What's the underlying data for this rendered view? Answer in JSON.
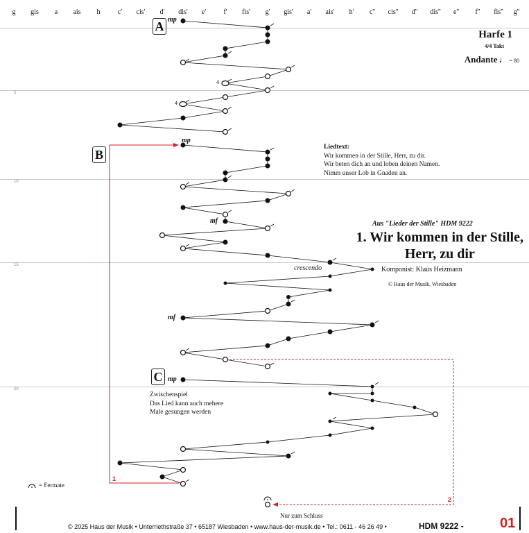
{
  "note_names": [
    "g",
    "gis",
    "a",
    "ais",
    "h",
    "c'",
    "cis'",
    "d'",
    "dis'",
    "e'",
    "f'",
    "fis'",
    "g'",
    "gis'",
    "a'",
    "ais'",
    "h'",
    "c''",
    "cis''",
    "d''",
    "dis''",
    "e''",
    "f''",
    "fis''",
    "g''"
  ],
  "measure_numbers": [
    "5",
    "10",
    "15",
    "20"
  ],
  "sections": {
    "a": "A",
    "b": "B",
    "c": "C"
  },
  "dynamics": {
    "a_mp": "mp",
    "b_mp": "mp",
    "mf1": "mf",
    "mf2": "mf",
    "c_mp": "mp"
  },
  "fingering": {
    "f1": "4",
    "f2": "4"
  },
  "header": {
    "instrument": "Harfe 1",
    "time_signature": "4/4 Takt",
    "tempo_word": "Andante",
    "tempo_value": "= 80"
  },
  "lyrics": {
    "heading": "Liedtext:",
    "lines": [
      "Wir kommen in der Stille, Herr, zu dir.",
      "Wir beten dich an und loben deinen Namen.",
      "Nimm unser Lob in Gnaden an."
    ]
  },
  "song": {
    "source": "Aus \"Lieder der Stille\" HDM 9222",
    "title_line1": "1. Wir kommen in der Stille,",
    "title_line2": "Herr, zu dir",
    "composer": "Komponist: Klaus Heizmann",
    "copyright": "© Haus der Musik, Wiesbaden"
  },
  "crescendo": "crescendo",
  "interlude": {
    "lines": [
      "Zwischenspiel",
      "Das Lied kann auch mehere",
      "Male gesungen werden"
    ]
  },
  "legend": {
    "fermata": "= Fermate"
  },
  "repeat_labels": {
    "one": "1",
    "two": "2"
  },
  "ending_note": "Nur zum Schluss",
  "footer": {
    "text": "© 2025 Haus der Musik • Unterriethstraße 37 • 65187 Wiesbaden • www.haus-der-musik.de • Tel.: 0611 - 46 26 49 •",
    "catalog": "HDM 9222 -",
    "page": "01"
  },
  "colors": {
    "accent": "#d32020",
    "ink": "#111111",
    "staff": "#c8c8c8"
  }
}
